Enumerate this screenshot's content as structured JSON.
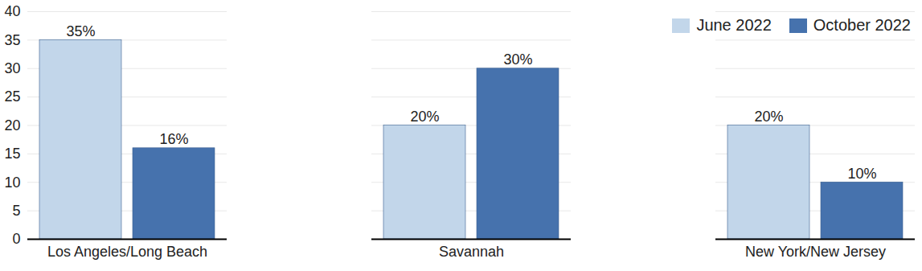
{
  "chart_data": {
    "type": "bar",
    "categories": [
      "Los Angeles/Long Beach",
      "Savannah",
      "New York/New Jersey"
    ],
    "series": [
      {
        "name": "June 2022",
        "color": "#c2d6ea",
        "values": [
          35,
          20,
          20
        ],
        "value_labels": [
          "35%",
          "20%",
          "20%"
        ]
      },
      {
        "name": "October 2022",
        "color": "#4672ad",
        "values": [
          16,
          30,
          10
        ],
        "value_labels": [
          "16%",
          "30%",
          "10%"
        ]
      }
    ],
    "ylim": [
      0,
      40
    ],
    "yticks": [
      0,
      5,
      10,
      15,
      20,
      25,
      30,
      35,
      40
    ],
    "grid": true,
    "legend": "top-right",
    "data_labels": true
  }
}
